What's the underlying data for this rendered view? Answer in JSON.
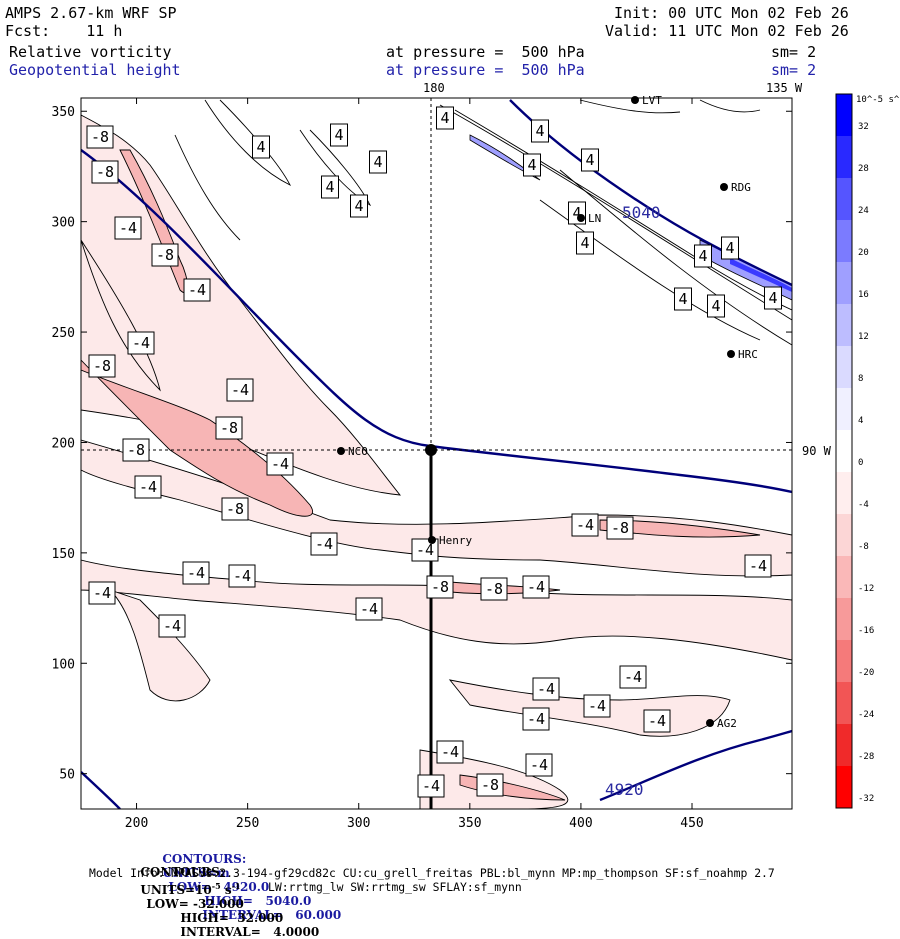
{
  "header": {
    "model_title": "AMPS 2.67-km WRF SP",
    "init": "Init: 00 UTC Mon 02 Feb 26",
    "forecast": "Fcst:    11 h",
    "valid": "Valid: 11 UTC Mon 02 Feb 26",
    "field1": "Relative vorticity",
    "field1_level": "at pressure =  500 hPa",
    "field1_sm": "sm= 2",
    "field2": "Geopotential height",
    "field2_level": "at pressure =  500 hPa",
    "field2_sm": "sm= 2"
  },
  "map_labels": {
    "top_lon_180": "180",
    "top_lon_135": "135 W",
    "right_lat_90": "90 W"
  },
  "stations": [
    {
      "name": "LVT"
    },
    {
      "name": "RDG"
    },
    {
      "name": "LN"
    },
    {
      "name": "HRC"
    },
    {
      "name": "NCO"
    },
    {
      "name": "Henry"
    },
    {
      "name": "AG2"
    }
  ],
  "chart_data": {
    "type": "contour",
    "xlim": [
      175,
      495
    ],
    "ylim": [
      34,
      356
    ],
    "x_ticks": [
      200,
      250,
      300,
      350,
      400,
      450
    ],
    "y_ticks": [
      50,
      100,
      150,
      200,
      250,
      300,
      350
    ],
    "contour_labels_vorticity": [
      4,
      -4,
      -8
    ],
    "height_contour_labels": [
      "5040",
      "4920"
    ],
    "colorbar": {
      "unit_label": "10^-5 s^-1",
      "ticks": [
        32,
        28,
        24,
        20,
        16,
        12,
        8,
        4,
        0,
        -4,
        -8,
        -12,
        -16,
        -20,
        -24,
        -28,
        -32
      ],
      "colors": [
        "#0000ff",
        "#2929ff",
        "#5555ff",
        "#7b7bff",
        "#9f9fff",
        "#bdbdff",
        "#dadaff",
        "#f0f0ff",
        "#ffffff",
        "#ffeeee",
        "#fcd6d6",
        "#fab8b8",
        "#f79a9a",
        "#f57a7a",
        "#f25555",
        "#f02a2a",
        "#ff0000"
      ]
    }
  },
  "footer": {
    "line1_contours": "CONTOURS:",
    "line1_units": "UNITS=m",
    "line1_low": "LOW=   4920.0",
    "line1_high": "HIGH=   5040.0",
    "line1_interval": "INTERVAL=   60.000",
    "line2_contours": "CONTOURS:",
    "line2_units": "UNITS=10",
    "line2_exp": "-5",
    "line2_s": "s",
    "line2_sexp": "-1",
    "line2_low": "LOW= -32.000",
    "line2_high": "HIGH=  32.000",
    "line2_interval": "INTERVAL=   4.0000",
    "model_info": "Model Info: MPASv8.2.3-194-gf29cd82c CU:cu_grell_freitas PBL:bl_mynn MP:mp_thompson SF:sf_noahmp 2.7",
    "model_info2": "LW:rrtmg_lw SW:rrtmg_sw SFLAY:sf_mynn"
  }
}
